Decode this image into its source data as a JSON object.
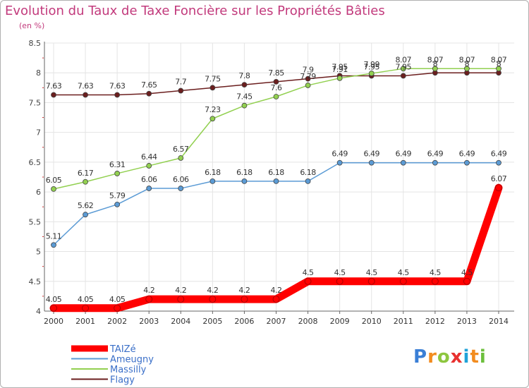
{
  "title": "Evolution du Taux de Taxe Foncière sur les Propriétés Bâties",
  "subtitle": "(en %)",
  "logo": "Proxiti",
  "chart_data": {
    "type": "line",
    "title": "Evolution du Taux de Taxe Foncière sur les Propriétés Bâties",
    "ylabel": "(en %)",
    "xlabel": "",
    "ylim": [
      4,
      8.5
    ],
    "yticks": [
      "4",
      "4.5",
      "5",
      "5.5",
      "6",
      "6.5",
      "7",
      "7.5",
      "8",
      "8.5"
    ],
    "grid": true,
    "legend_position": "bottom-left",
    "categories": [
      "2000",
      "2001",
      "2002",
      "2003",
      "2004",
      "2005",
      "2006",
      "2007",
      "2008",
      "2009",
      "2010",
      "2011",
      "2012",
      "2013",
      "2014"
    ],
    "series": [
      {
        "name": "TAIZé",
        "color": "#ff0000",
        "labels": [
          "4.05",
          "4.05",
          "4.05",
          "4.2",
          "4.2",
          "4.2",
          "4.2",
          "4.2",
          "4.5",
          "4.5",
          "4.5",
          "4.5",
          "4.5",
          "4.5",
          "6.07"
        ],
        "values": [
          4.05,
          4.05,
          4.05,
          4.2,
          4.2,
          4.2,
          4.2,
          4.2,
          4.5,
          4.5,
          4.5,
          4.5,
          4.5,
          4.5,
          6.07
        ]
      },
      {
        "name": "Ameugny",
        "color": "#5b9bd5",
        "labels": [
          "5.11",
          "5.62",
          "5.79",
          "6.06",
          "6.06",
          "6.18",
          "6.18",
          "6.18",
          "6.18",
          "6.49",
          "6.49",
          "6.49",
          "6.49",
          "6.49",
          "6.49"
        ],
        "values": [
          5.11,
          5.62,
          5.79,
          6.06,
          6.06,
          6.18,
          6.18,
          6.18,
          6.18,
          6.49,
          6.49,
          6.49,
          6.49,
          6.49,
          6.49
        ]
      },
      {
        "name": "Massilly",
        "color": "#92d050",
        "labels": [
          "6.05",
          "6.17",
          "6.31",
          "6.44",
          "6.57",
          "7.23",
          "7.45",
          "7.6",
          "7.79",
          "7.91",
          "7.99",
          "8.07",
          "8.07",
          "8.07",
          "8.07"
        ],
        "values": [
          6.05,
          6.17,
          6.31,
          6.44,
          6.57,
          7.23,
          7.45,
          7.6,
          7.79,
          7.91,
          7.99,
          8.07,
          8.07,
          8.07,
          8.07
        ]
      },
      {
        "name": "Flagy",
        "color": "#6b1e1e",
        "labels": [
          "7.63",
          "7.63",
          "7.63",
          "7.65",
          "7.7",
          "7.75",
          "7.8",
          "7.85",
          "7.9",
          "7.95",
          "7.95",
          "7.95",
          "8",
          "8",
          "8"
        ],
        "values": [
          7.63,
          7.63,
          7.63,
          7.65,
          7.7,
          7.75,
          7.8,
          7.85,
          7.9,
          7.95,
          7.95,
          7.95,
          8,
          8,
          8
        ]
      }
    ]
  }
}
